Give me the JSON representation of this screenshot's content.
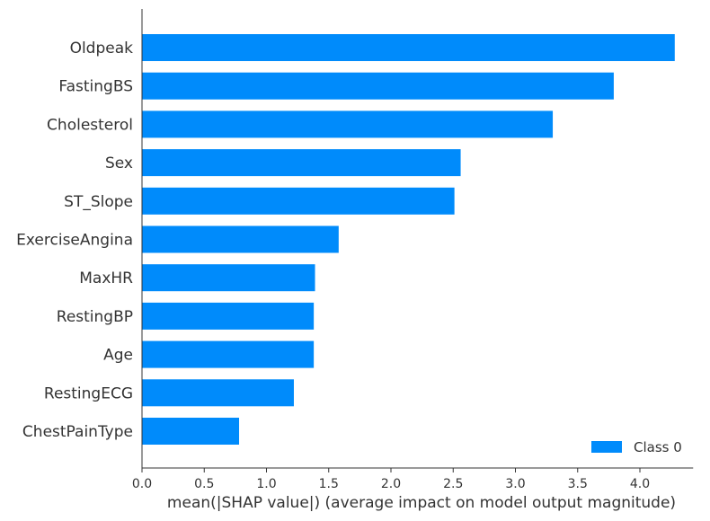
{
  "chart_data": {
    "type": "bar",
    "orientation": "horizontal",
    "categories": [
      "Oldpeak",
      "FastingBS",
      "Cholesterol",
      "Sex",
      "ST_Slope",
      "ExerciseAngina",
      "MaxHR",
      "RestingBP",
      "Age",
      "RestingECG",
      "ChestPainType"
    ],
    "series": [
      {
        "name": "Class 0",
        "values": [
          4.28,
          3.79,
          3.3,
          2.56,
          2.51,
          1.58,
          1.39,
          1.38,
          1.38,
          1.22,
          0.78
        ]
      }
    ],
    "xlabel": "mean(|SHAP value|) (average impact on model output magnitude)",
    "ylabel": "",
    "xlim": [
      0,
      4.5
    ],
    "xticks": [
      0.0,
      0.5,
      1.0,
      1.5,
      2.0,
      2.5,
      3.0,
      3.5,
      4.0
    ],
    "xtick_labels": [
      "0.0",
      "0.5",
      "1.0",
      "1.5",
      "2.0",
      "2.5",
      "3.0",
      "3.5",
      "4.0"
    ],
    "grid": false,
    "legend_position": "bottom-right",
    "colors": {
      "bar": "#008bfb",
      "axis": "#333333"
    }
  }
}
